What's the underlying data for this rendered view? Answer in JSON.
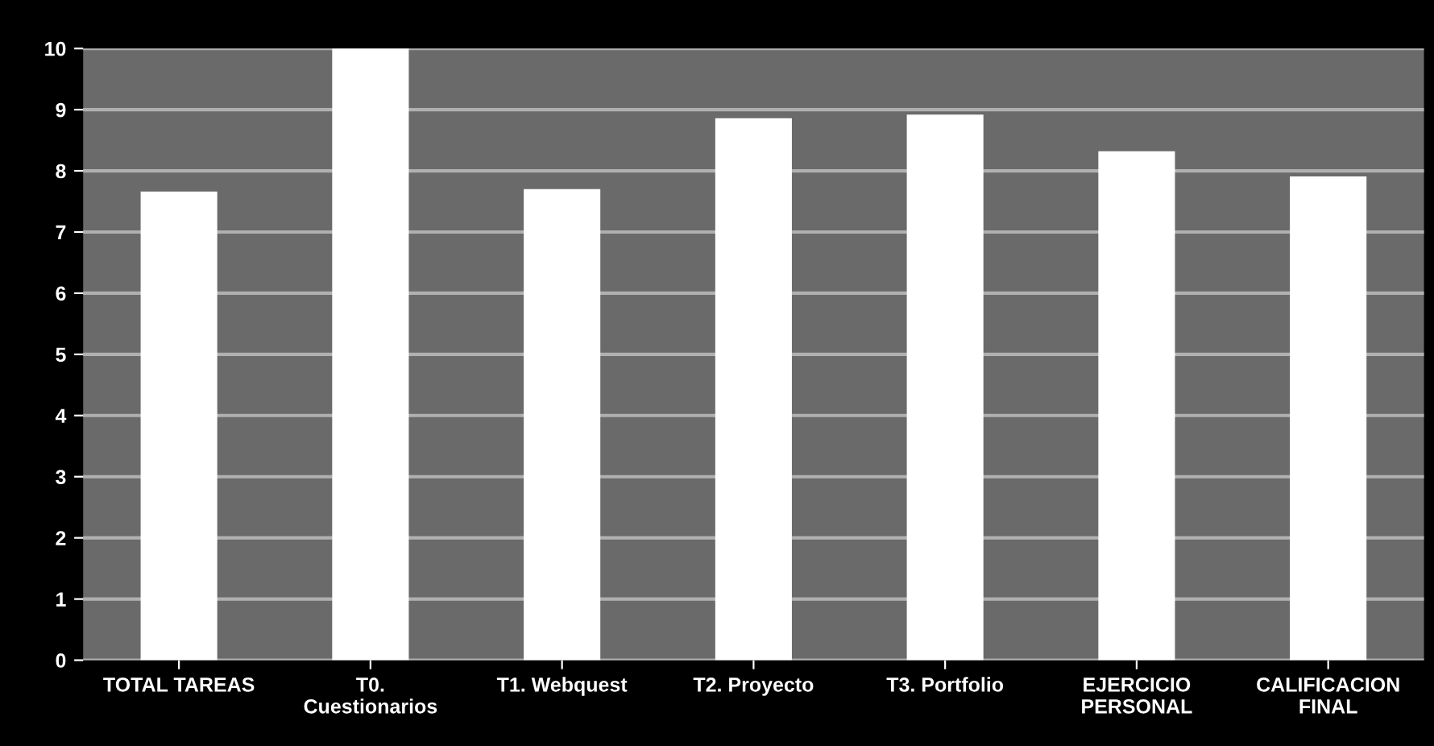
{
  "chart_data": {
    "type": "bar",
    "categories": [
      "TOTAL TAREAS",
      "T0.\nCuestionarios",
      "T1. Webquest",
      "T2. Proyecto",
      "T3. Portfolio",
      "EJERCICIO\nPERSONAL",
      "CALIFICACION\nFINAL"
    ],
    "values": [
      7.66,
      10,
      7.7,
      8.86,
      8.92,
      8.32,
      7.91
    ],
    "color": "#ffffff",
    "ylim": [
      0,
      10
    ],
    "yticks": [
      0,
      1,
      2,
      3,
      4,
      5,
      6,
      7,
      8,
      9,
      10
    ],
    "grid": "y"
  }
}
